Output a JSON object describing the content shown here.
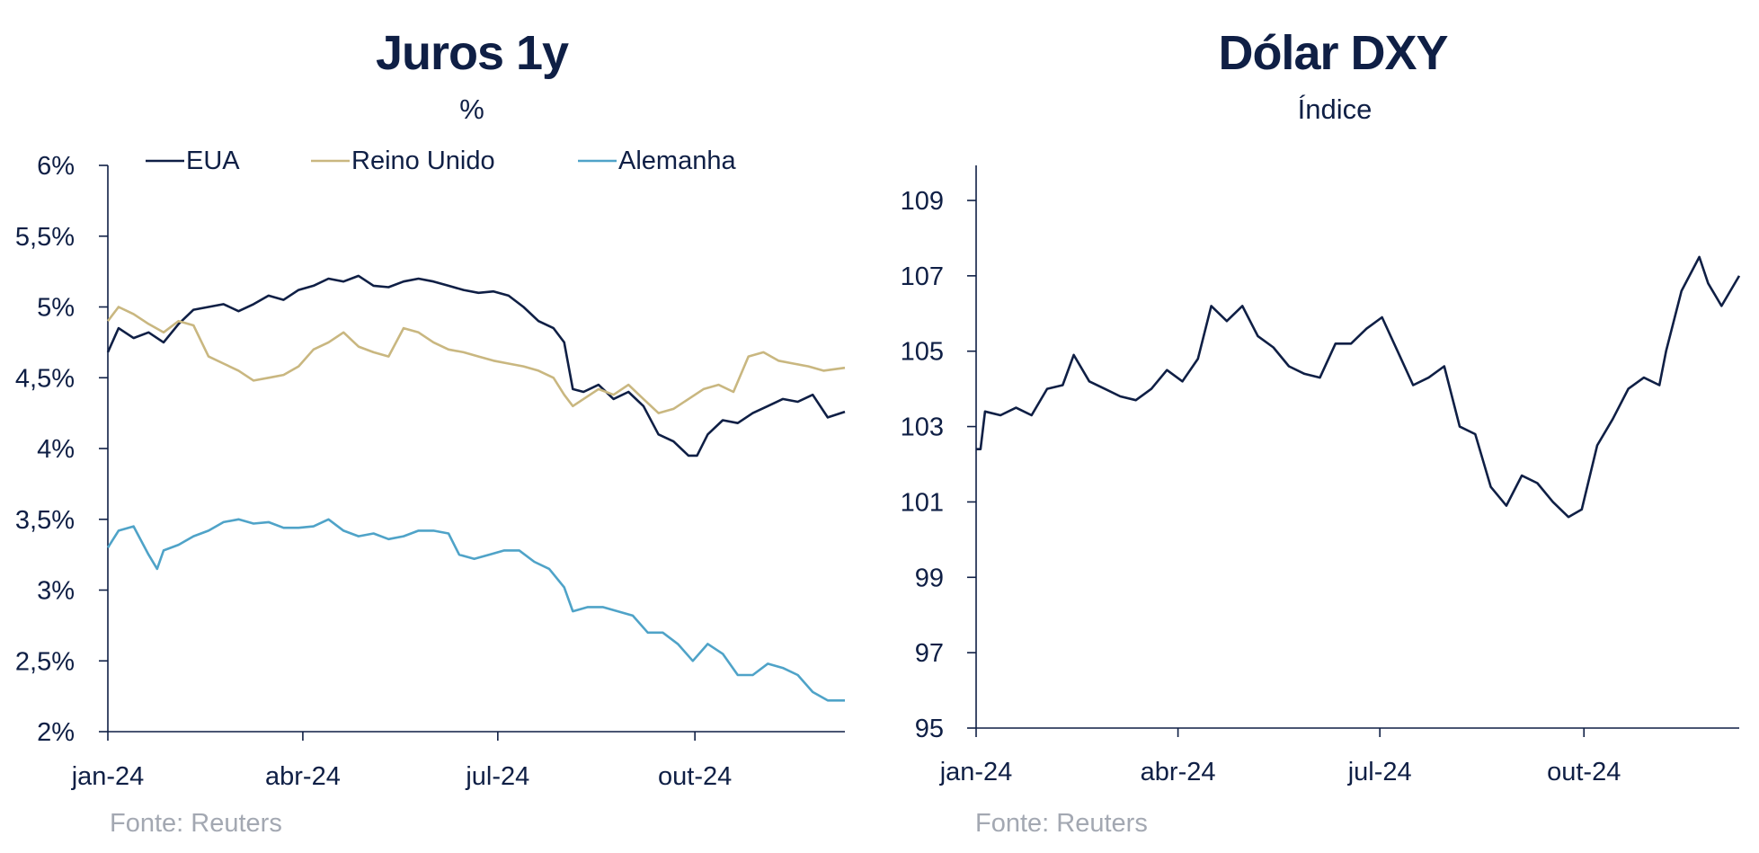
{
  "colors": {
    "navy": "#0f1f45",
    "gold": "#c9b780",
    "lightblue": "#4fa3c8",
    "axis": "#0f1f45",
    "source": "#a3a8b2"
  },
  "left": {
    "title": "Juros 1y",
    "subtitle": "%",
    "source": "Fonte: Reuters"
  },
  "right": {
    "title": "Dólar DXY",
    "subtitle": "Índice",
    "source": "Fonte: Reuters"
  },
  "chart_data": [
    {
      "type": "line",
      "title": "Juros 1y",
      "subtitle": "%",
      "x_ticks": [
        "jan-24",
        "abr-24",
        "jul-24",
        "out-24"
      ],
      "y_ticks": [
        "2%",
        "2,5%",
        "3%",
        "3,5%",
        "4%",
        "4,5%",
        "5%",
        "5,5%",
        "6%"
      ],
      "ylim": [
        2,
        6
      ],
      "xlim": [
        "2024-01-01",
        "2024-12-10"
      ],
      "legend_position": "top",
      "series": [
        {
          "name": "EUA",
          "color": "#0f1f45",
          "points": [
            [
              "2024-01-01",
              4.68
            ],
            [
              "2024-01-06",
              4.85
            ],
            [
              "2024-01-13",
              4.78
            ],
            [
              "2024-01-20",
              4.82
            ],
            [
              "2024-01-27",
              4.75
            ],
            [
              "2024-02-03",
              4.88
            ],
            [
              "2024-02-10",
              4.98
            ],
            [
              "2024-02-17",
              5.0
            ],
            [
              "2024-02-24",
              5.02
            ],
            [
              "2024-03-02",
              4.97
            ],
            [
              "2024-03-09",
              5.02
            ],
            [
              "2024-03-16",
              5.08
            ],
            [
              "2024-03-23",
              5.05
            ],
            [
              "2024-03-30",
              5.12
            ],
            [
              "2024-04-06",
              5.15
            ],
            [
              "2024-04-13",
              5.2
            ],
            [
              "2024-04-20",
              5.18
            ],
            [
              "2024-04-27",
              5.22
            ],
            [
              "2024-05-04",
              5.15
            ],
            [
              "2024-05-11",
              5.14
            ],
            [
              "2024-05-18",
              5.18
            ],
            [
              "2024-05-25",
              5.2
            ],
            [
              "2024-06-01",
              5.18
            ],
            [
              "2024-06-08",
              5.15
            ],
            [
              "2024-06-15",
              5.12
            ],
            [
              "2024-06-22",
              5.1
            ],
            [
              "2024-06-29",
              5.11
            ],
            [
              "2024-07-06",
              5.08
            ],
            [
              "2024-07-13",
              5.0
            ],
            [
              "2024-07-20",
              4.9
            ],
            [
              "2024-07-27",
              4.85
            ],
            [
              "2024-08-01",
              4.75
            ],
            [
              "2024-08-05",
              4.42
            ],
            [
              "2024-08-10",
              4.4
            ],
            [
              "2024-08-17",
              4.45
            ],
            [
              "2024-08-24",
              4.35
            ],
            [
              "2024-08-31",
              4.4
            ],
            [
              "2024-09-07",
              4.3
            ],
            [
              "2024-09-14",
              4.1
            ],
            [
              "2024-09-21",
              4.05
            ],
            [
              "2024-09-28",
              3.95
            ],
            [
              "2024-10-02",
              3.95
            ],
            [
              "2024-10-07",
              4.1
            ],
            [
              "2024-10-14",
              4.2
            ],
            [
              "2024-10-21",
              4.18
            ],
            [
              "2024-10-28",
              4.25
            ],
            [
              "2024-11-04",
              4.3
            ],
            [
              "2024-11-11",
              4.35
            ],
            [
              "2024-11-18",
              4.33
            ],
            [
              "2024-11-25",
              4.38
            ],
            [
              "2024-12-02",
              4.22
            ],
            [
              "2024-12-10",
              4.26
            ]
          ]
        },
        {
          "name": "Reino Unido",
          "color": "#c9b780",
          "points": [
            [
              "2024-01-01",
              4.9
            ],
            [
              "2024-01-06",
              5.0
            ],
            [
              "2024-01-13",
              4.95
            ],
            [
              "2024-01-20",
              4.88
            ],
            [
              "2024-01-27",
              4.82
            ],
            [
              "2024-02-03",
              4.9
            ],
            [
              "2024-02-10",
              4.87
            ],
            [
              "2024-02-17",
              4.65
            ],
            [
              "2024-02-24",
              4.6
            ],
            [
              "2024-03-02",
              4.55
            ],
            [
              "2024-03-09",
              4.48
            ],
            [
              "2024-03-16",
              4.5
            ],
            [
              "2024-03-23",
              4.52
            ],
            [
              "2024-03-30",
              4.58
            ],
            [
              "2024-04-06",
              4.7
            ],
            [
              "2024-04-13",
              4.75
            ],
            [
              "2024-04-20",
              4.82
            ],
            [
              "2024-04-27",
              4.72
            ],
            [
              "2024-05-04",
              4.68
            ],
            [
              "2024-05-11",
              4.65
            ],
            [
              "2024-05-18",
              4.85
            ],
            [
              "2024-05-25",
              4.82
            ],
            [
              "2024-06-01",
              4.75
            ],
            [
              "2024-06-08",
              4.7
            ],
            [
              "2024-06-15",
              4.68
            ],
            [
              "2024-06-22",
              4.65
            ],
            [
              "2024-06-29",
              4.62
            ],
            [
              "2024-07-06",
              4.6
            ],
            [
              "2024-07-13",
              4.58
            ],
            [
              "2024-07-20",
              4.55
            ],
            [
              "2024-07-27",
              4.5
            ],
            [
              "2024-08-01",
              4.38
            ],
            [
              "2024-08-05",
              4.3
            ],
            [
              "2024-08-10",
              4.35
            ],
            [
              "2024-08-17",
              4.42
            ],
            [
              "2024-08-24",
              4.38
            ],
            [
              "2024-08-31",
              4.45
            ],
            [
              "2024-09-07",
              4.35
            ],
            [
              "2024-09-14",
              4.25
            ],
            [
              "2024-09-21",
              4.28
            ],
            [
              "2024-09-28",
              4.35
            ],
            [
              "2024-10-05",
              4.42
            ],
            [
              "2024-10-12",
              4.45
            ],
            [
              "2024-10-19",
              4.4
            ],
            [
              "2024-10-26",
              4.65
            ],
            [
              "2024-11-02",
              4.68
            ],
            [
              "2024-11-09",
              4.62
            ],
            [
              "2024-11-16",
              4.6
            ],
            [
              "2024-11-23",
              4.58
            ],
            [
              "2024-11-30",
              4.55
            ],
            [
              "2024-12-10",
              4.57
            ]
          ]
        },
        {
          "name": "Alemanha",
          "color": "#4fa3c8",
          "points": [
            [
              "2024-01-01",
              3.3
            ],
            [
              "2024-01-06",
              3.42
            ],
            [
              "2024-01-13",
              3.45
            ],
            [
              "2024-01-20",
              3.25
            ],
            [
              "2024-01-24",
              3.15
            ],
            [
              "2024-01-27",
              3.28
            ],
            [
              "2024-02-03",
              3.32
            ],
            [
              "2024-02-10",
              3.38
            ],
            [
              "2024-02-17",
              3.42
            ],
            [
              "2024-02-24",
              3.48
            ],
            [
              "2024-03-02",
              3.5
            ],
            [
              "2024-03-09",
              3.47
            ],
            [
              "2024-03-16",
              3.48
            ],
            [
              "2024-03-23",
              3.44
            ],
            [
              "2024-03-30",
              3.44
            ],
            [
              "2024-04-06",
              3.45
            ],
            [
              "2024-04-13",
              3.5
            ],
            [
              "2024-04-20",
              3.42
            ],
            [
              "2024-04-27",
              3.38
            ],
            [
              "2024-05-04",
              3.4
            ],
            [
              "2024-05-11",
              3.36
            ],
            [
              "2024-05-18",
              3.38
            ],
            [
              "2024-05-25",
              3.42
            ],
            [
              "2024-06-01",
              3.42
            ],
            [
              "2024-06-08",
              3.4
            ],
            [
              "2024-06-13",
              3.25
            ],
            [
              "2024-06-20",
              3.22
            ],
            [
              "2024-06-27",
              3.25
            ],
            [
              "2024-07-04",
              3.28
            ],
            [
              "2024-07-11",
              3.28
            ],
            [
              "2024-07-18",
              3.2
            ],
            [
              "2024-07-25",
              3.15
            ],
            [
              "2024-08-01",
              3.02
            ],
            [
              "2024-08-05",
              2.85
            ],
            [
              "2024-08-12",
              2.88
            ],
            [
              "2024-08-19",
              2.88
            ],
            [
              "2024-08-26",
              2.85
            ],
            [
              "2024-09-02",
              2.82
            ],
            [
              "2024-09-09",
              2.7
            ],
            [
              "2024-09-16",
              2.7
            ],
            [
              "2024-09-23",
              2.62
            ],
            [
              "2024-09-30",
              2.5
            ],
            [
              "2024-10-07",
              2.62
            ],
            [
              "2024-10-14",
              2.55
            ],
            [
              "2024-10-21",
              2.4
            ],
            [
              "2024-10-28",
              2.4
            ],
            [
              "2024-11-04",
              2.48
            ],
            [
              "2024-11-11",
              2.45
            ],
            [
              "2024-11-18",
              2.4
            ],
            [
              "2024-11-25",
              2.28
            ],
            [
              "2024-12-02",
              2.22
            ],
            [
              "2024-12-10",
              2.22
            ]
          ]
        }
      ]
    },
    {
      "type": "line",
      "title": "Dólar DXY",
      "subtitle": "Índice",
      "x_ticks": [
        "jan-24",
        "abr-24",
        "jul-24",
        "out-24"
      ],
      "y_ticks": [
        "95",
        "97",
        "99",
        "101",
        "103",
        "105",
        "107",
        "109"
      ],
      "ylim": [
        95,
        110
      ],
      "xlim": [
        "2024-01-01",
        "2024-12-10"
      ],
      "series": [
        {
          "name": "Dólar DXY",
          "color": "#0f1f45",
          "points": [
            [
              "2024-01-01",
              102.4
            ],
            [
              "2024-01-03",
              102.4
            ],
            [
              "2024-01-05",
              103.4
            ],
            [
              "2024-01-12",
              103.3
            ],
            [
              "2024-01-19",
              103.5
            ],
            [
              "2024-01-26",
              103.3
            ],
            [
              "2024-02-02",
              104.0
            ],
            [
              "2024-02-09",
              104.1
            ],
            [
              "2024-02-14",
              104.9
            ],
            [
              "2024-02-21",
              104.2
            ],
            [
              "2024-02-28",
              104.0
            ],
            [
              "2024-03-06",
              103.8
            ],
            [
              "2024-03-13",
              103.7
            ],
            [
              "2024-03-20",
              104.0
            ],
            [
              "2024-03-27",
              104.5
            ],
            [
              "2024-04-03",
              104.2
            ],
            [
              "2024-04-10",
              104.8
            ],
            [
              "2024-04-16",
              106.2
            ],
            [
              "2024-04-23",
              105.8
            ],
            [
              "2024-04-30",
              106.2
            ],
            [
              "2024-05-07",
              105.4
            ],
            [
              "2024-05-14",
              105.1
            ],
            [
              "2024-05-21",
              104.6
            ],
            [
              "2024-05-28",
              104.4
            ],
            [
              "2024-06-04",
              104.3
            ],
            [
              "2024-06-11",
              105.2
            ],
            [
              "2024-06-18",
              105.2
            ],
            [
              "2024-06-25",
              105.6
            ],
            [
              "2024-07-02",
              105.9
            ],
            [
              "2024-07-09",
              105.0
            ],
            [
              "2024-07-16",
              104.1
            ],
            [
              "2024-07-23",
              104.3
            ],
            [
              "2024-07-30",
              104.6
            ],
            [
              "2024-08-06",
              103.0
            ],
            [
              "2024-08-13",
              102.8
            ],
            [
              "2024-08-20",
              101.4
            ],
            [
              "2024-08-27",
              100.9
            ],
            [
              "2024-09-03",
              101.7
            ],
            [
              "2024-09-10",
              101.5
            ],
            [
              "2024-09-17",
              101.0
            ],
            [
              "2024-09-24",
              100.6
            ],
            [
              "2024-09-30",
              100.8
            ],
            [
              "2024-10-07",
              102.5
            ],
            [
              "2024-10-14",
              103.2
            ],
            [
              "2024-10-21",
              104.0
            ],
            [
              "2024-10-28",
              104.3
            ],
            [
              "2024-11-04",
              104.1
            ],
            [
              "2024-11-07",
              105.0
            ],
            [
              "2024-11-14",
              106.6
            ],
            [
              "2024-11-22",
              107.5
            ],
            [
              "2024-11-26",
              106.8
            ],
            [
              "2024-12-02",
              106.2
            ],
            [
              "2024-12-10",
              107.0
            ]
          ]
        }
      ]
    }
  ]
}
